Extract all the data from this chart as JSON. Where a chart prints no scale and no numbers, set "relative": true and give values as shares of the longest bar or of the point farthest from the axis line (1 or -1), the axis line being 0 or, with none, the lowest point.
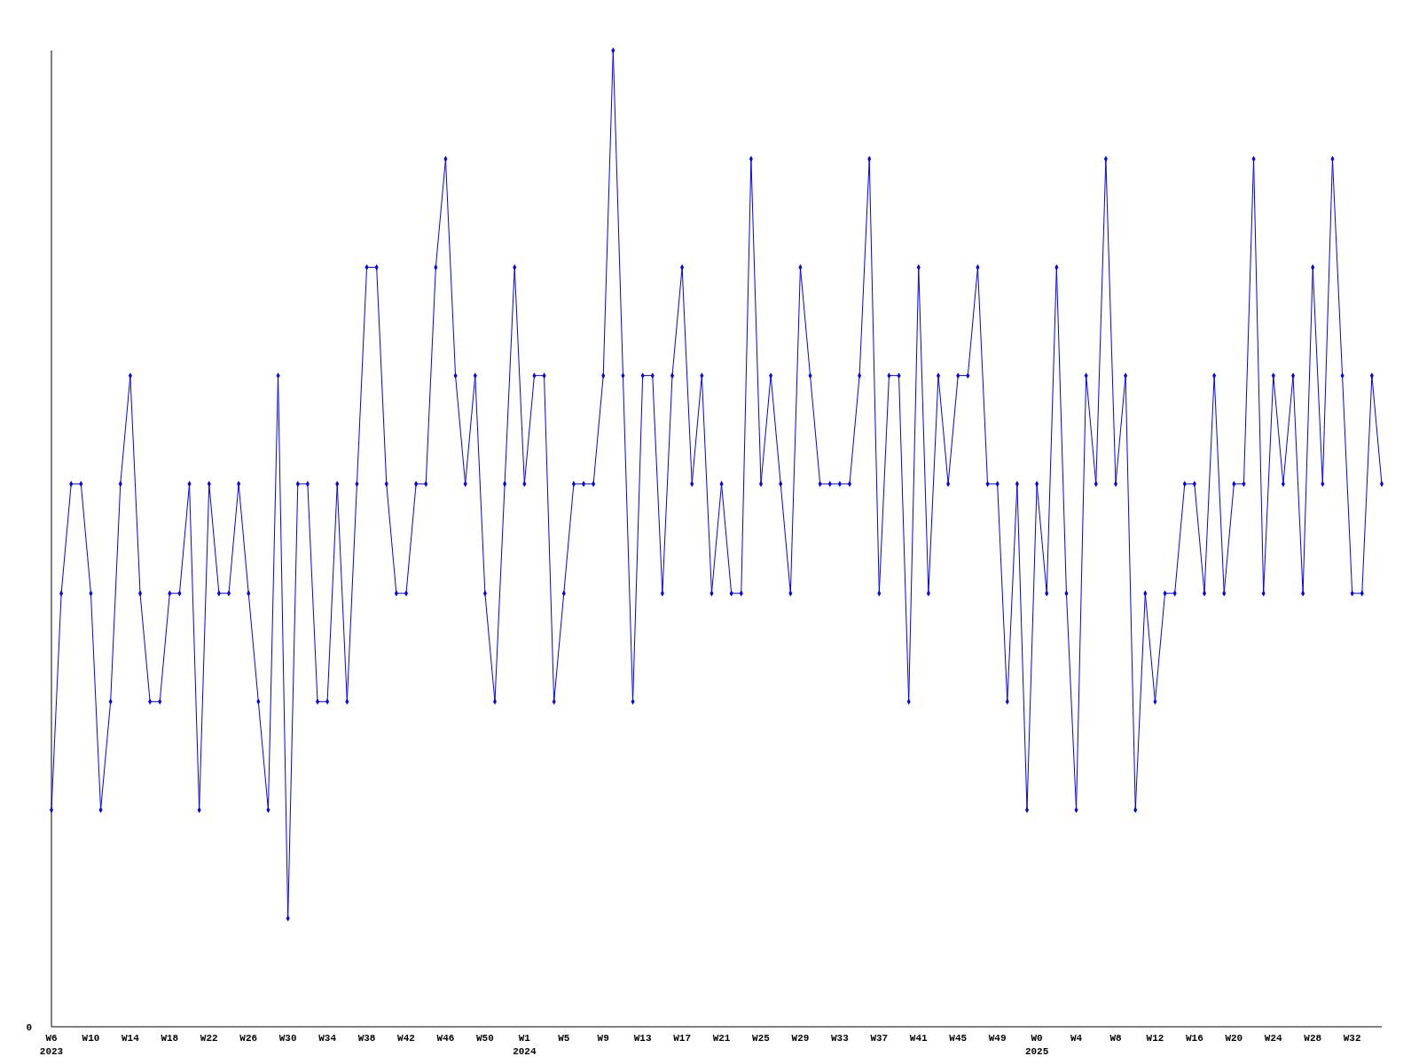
{
  "chart_data": {
    "type": "line",
    "relative": true,
    "marker": "diamond",
    "line_style": "solid",
    "categories": [
      "W6\n2023",
      null,
      null,
      null,
      "W10",
      null,
      null,
      null,
      "W14",
      null,
      null,
      null,
      "W18",
      null,
      null,
      null,
      "W22",
      null,
      null,
      null,
      "W26",
      null,
      null,
      null,
      "W30",
      null,
      null,
      null,
      "W34",
      null,
      null,
      null,
      "W38",
      null,
      null,
      null,
      "W42",
      null,
      null,
      null,
      "W46",
      null,
      null,
      null,
      "W50",
      null,
      null,
      null,
      "W1\n2024",
      null,
      null,
      null,
      "W5",
      null,
      null,
      null,
      "W9",
      null,
      null,
      null,
      "W13",
      null,
      null,
      null,
      "W17",
      null,
      null,
      null,
      "W21",
      null,
      null,
      null,
      "W25",
      null,
      null,
      null,
      "W29",
      null,
      null,
      null,
      "W33",
      null,
      null,
      null,
      "W37",
      null,
      null,
      null,
      "W41",
      null,
      null,
      null,
      "W45",
      null,
      null,
      null,
      "W49",
      null,
      null,
      null,
      "W0\n2025",
      null,
      null,
      null,
      "W4",
      null,
      null,
      null,
      "W8",
      null,
      null,
      null,
      "W12",
      null,
      null,
      null,
      "W16",
      null,
      null,
      null,
      "W20",
      null,
      null,
      null,
      "W24",
      null,
      null,
      null,
      "W28",
      null,
      null,
      null,
      "W32",
      null,
      null,
      null
    ],
    "series": [
      {
        "color": "#0000ff",
        "values": [
          0.222,
          0.444,
          0.556,
          0.556,
          0.444,
          0.222,
          0.333,
          0.556,
          0.667,
          0.444,
          0.333,
          0.333,
          0.444,
          0.444,
          0.556,
          0.222,
          0.556,
          0.444,
          0.444,
          0.556,
          0.444,
          0.333,
          0.222,
          0.667,
          0.111,
          0.556,
          0.556,
          0.333,
          0.333,
          0.556,
          0.333,
          0.556,
          0.778,
          0.778,
          0.556,
          0.444,
          0.444,
          0.556,
          0.556,
          0.778,
          0.889,
          0.667,
          0.556,
          0.667,
          0.444,
          0.333,
          0.556,
          0.778,
          0.556,
          0.667,
          0.667,
          0.333,
          0.444,
          0.556,
          0.556,
          0.556,
          0.667,
          1,
          0.667,
          0.333,
          0.667,
          0.667,
          0.444,
          0.667,
          0.778,
          0.556,
          0.667,
          0.444,
          0.556,
          0.444,
          0.444,
          0.889,
          0.556,
          0.667,
          0.556,
          0.444,
          0.778,
          0.667,
          0.556,
          0.556,
          0.556,
          0.556,
          0.667,
          0.889,
          0.444,
          0.667,
          0.667,
          0.333,
          0.778,
          0.444,
          0.667,
          0.556,
          0.667,
          0.667,
          0.778,
          0.556,
          0.556,
          0.333,
          0.556,
          0.222,
          0.556,
          0.444,
          0.778,
          0.444,
          0.222,
          0.667,
          0.556,
          0.889,
          0.556,
          0.667,
          0.222,
          0.444,
          0.333,
          0.444,
          0.444,
          0.556,
          0.556,
          0.444,
          0.667,
          0.444,
          0.556,
          0.556,
          0.889,
          0.444,
          0.667,
          0.556,
          0.667,
          0.444,
          0.778,
          0.556,
          0.889,
          0.667,
          0.444,
          0.444,
          0.667,
          0.556
        ]
      }
    ],
    "annotations": [
      "0"
    ]
  }
}
